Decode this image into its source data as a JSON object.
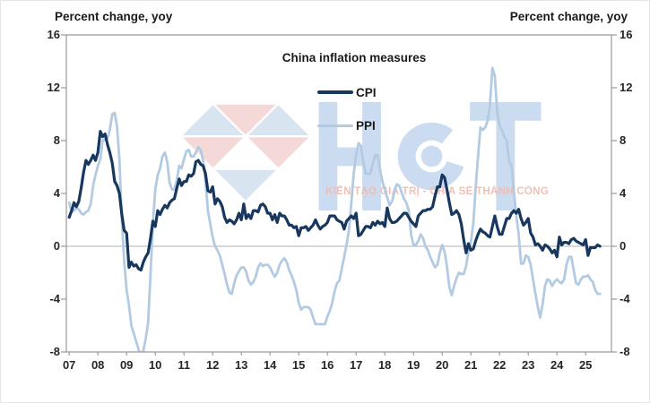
{
  "chart": {
    "left_axis_title": "Percent change, yoy",
    "right_axis_title": "Percent change, yoy",
    "legend": {
      "title": "China inflation measures",
      "items": [
        {
          "label": "CPI",
          "color": "#17375e",
          "thickness": 4
        },
        {
          "label": "PPI",
          "color": "#b3cbe2",
          "thickness": 3
        }
      ]
    },
    "frame_color": "#9a9a9a",
    "zero_line_color": "#b0b0b0",
    "tick_label_color": "#262626"
  },
  "watermark": {
    "text": "HCT",
    "tagline": "KIẾN TẠO GIÁ TRỊ - CHIA SẺ THÀNH CÔNG",
    "colors": {
      "logo_blue": "#d9e4f1",
      "logo_pink": "#f5d9d9",
      "text_blue": "#ccdcf0",
      "tagline_pink": "#efbdb2"
    }
  },
  "chart_data": {
    "type": "line",
    "title": "China inflation measures",
    "xlabel": "",
    "ylabel": "Percent change, yoy",
    "xlim": [
      2006.9,
      2025.9
    ],
    "ylim": [
      -8,
      16
    ],
    "y_ticks": [
      16,
      12,
      8,
      4,
      0,
      -4,
      -8
    ],
    "y_tick_labels": [
      "16",
      "12",
      "8",
      "4",
      "0",
      "-4",
      "-8"
    ],
    "x_tick_years": [
      2007,
      2008,
      2009,
      2010,
      2011,
      2012,
      2013,
      2014,
      2015,
      2016,
      2017,
      2018,
      2019,
      2020,
      2021,
      2022,
      2023,
      2024,
      2025
    ],
    "x_tick_labels": [
      "07",
      "08",
      "09",
      "10",
      "11",
      "12",
      "13",
      "14",
      "15",
      "16",
      "17",
      "18",
      "19",
      "20",
      "21",
      "22",
      "23",
      "24",
      "25"
    ],
    "grid": "zero-line-only",
    "legend_position": "top-center",
    "x_start": 2007.0,
    "x_step_years": 0.0833333,
    "x_frequency": "monthly",
    "series": [
      {
        "name": "CPI",
        "color": "#17375e",
        "width": 3.2,
        "values": [
          2.2,
          2.7,
          3.3,
          3.0,
          3.4,
          4.4,
          5.6,
          6.5,
          6.2,
          6.5,
          6.9,
          6.5,
          7.1,
          8.7,
          8.3,
          8.5,
          7.7,
          7.1,
          6.3,
          4.9,
          4.6,
          4.0,
          2.4,
          1.2,
          1.0,
          -1.6,
          -1.2,
          -1.5,
          -1.4,
          -1.7,
          -1.8,
          -1.2,
          -0.8,
          -0.5,
          0.6,
          1.9,
          1.5,
          2.7,
          2.4,
          2.8,
          3.1,
          2.9,
          3.3,
          3.5,
          3.6,
          4.4,
          5.1,
          4.6,
          4.9,
          4.9,
          5.4,
          5.3,
          5.5,
          6.4,
          6.5,
          6.2,
          6.1,
          5.5,
          4.2,
          4.1,
          4.5,
          3.2,
          3.6,
          3.4,
          3.0,
          2.2,
          1.8,
          2.0,
          1.9,
          1.7,
          2.0,
          2.5,
          2.0,
          3.2,
          2.1,
          2.4,
          2.1,
          2.7,
          2.7,
          2.6,
          3.1,
          3.2,
          3.0,
          2.5,
          2.5,
          2.0,
          2.4,
          1.8,
          2.5,
          2.3,
          2.3,
          2.0,
          1.6,
          1.6,
          1.4,
          1.5,
          0.8,
          1.4,
          1.4,
          1.5,
          1.2,
          1.4,
          1.6,
          2.0,
          1.6,
          1.3,
          1.5,
          1.6,
          1.8,
          2.3,
          2.3,
          2.3,
          2.0,
          1.9,
          1.8,
          1.3,
          1.9,
          2.1,
          2.3,
          2.1,
          2.5,
          0.8,
          0.9,
          1.2,
          1.5,
          1.5,
          1.4,
          1.8,
          1.6,
          1.9,
          1.7,
          1.8,
          1.5,
          2.9,
          2.1,
          1.8,
          1.8,
          1.9,
          2.1,
          2.3,
          2.5,
          2.5,
          2.2,
          1.9,
          1.7,
          1.5,
          2.3,
          2.5,
          2.7,
          2.7,
          2.8,
          2.8,
          3.0,
          3.8,
          4.5,
          4.5,
          5.4,
          5.2,
          4.3,
          3.3,
          2.4,
          2.5,
          2.7,
          2.4,
          1.7,
          0.5,
          -0.5,
          0.2,
          -0.3,
          -0.2,
          0.4,
          0.9,
          1.3,
          1.1,
          1.0,
          0.8,
          0.7,
          1.5,
          2.3,
          1.5,
          0.9,
          0.9,
          1.5,
          2.1,
          2.1,
          2.5,
          2.7,
          2.5,
          2.8,
          2.1,
          1.6,
          1.8,
          2.1,
          1.0,
          0.7,
          0.1,
          0.2,
          0.0,
          -0.3,
          0.1,
          0.0,
          -0.2,
          -0.5,
          -0.3,
          -0.8,
          0.7,
          0.1,
          0.3,
          0.3,
          0.2,
          0.5,
          0.6,
          0.4,
          0.3,
          0.2,
          0.1,
          0.5,
          -0.7,
          -0.1,
          -0.1,
          -0.1,
          0.1,
          0.0
        ]
      },
      {
        "name": "PPI",
        "color": "#b3cbe2",
        "width": 2.8,
        "values": [
          3.3,
          2.6,
          2.7,
          2.9,
          2.8,
          2.5,
          2.4,
          2.6,
          2.7,
          3.2,
          4.6,
          5.4,
          6.1,
          6.6,
          8.0,
          8.1,
          8.2,
          8.8,
          10.0,
          10.1,
          9.1,
          6.6,
          2.0,
          -1.1,
          -3.3,
          -4.5,
          -6.0,
          -6.6,
          -7.2,
          -7.8,
          -8.2,
          -7.9,
          -7.0,
          -5.8,
          -2.1,
          1.7,
          4.3,
          5.4,
          5.9,
          6.8,
          7.1,
          6.4,
          4.8,
          4.3,
          4.3,
          5.0,
          6.1,
          5.9,
          6.6,
          7.2,
          7.3,
          6.8,
          6.8,
          7.1,
          7.5,
          7.3,
          6.5,
          5.0,
          2.7,
          1.7,
          0.7,
          0.0,
          -0.3,
          -0.7,
          -1.4,
          -2.1,
          -2.9,
          -3.5,
          -3.6,
          -2.8,
          -2.2,
          -1.9,
          -1.6,
          -1.6,
          -1.9,
          -2.6,
          -2.9,
          -2.7,
          -2.3,
          -1.6,
          -1.3,
          -1.5,
          -1.4,
          -1.4,
          -1.6,
          -2.0,
          -2.3,
          -2.0,
          -1.4,
          -1.1,
          -0.9,
          -1.2,
          -1.8,
          -2.2,
          -2.7,
          -3.3,
          -4.3,
          -4.8,
          -4.6,
          -4.6,
          -4.6,
          -4.8,
          -5.4,
          -5.9,
          -5.9,
          -5.9,
          -5.9,
          -5.9,
          -5.3,
          -4.9,
          -4.3,
          -3.4,
          -2.8,
          -2.6,
          -1.7,
          -0.8,
          0.1,
          1.2,
          3.3,
          5.5,
          6.9,
          7.8,
          7.6,
          6.4,
          5.5,
          5.5,
          5.5,
          6.3,
          6.9,
          6.9,
          5.8,
          4.9,
          4.3,
          3.7,
          3.1,
          3.4,
          4.1,
          4.7,
          4.6,
          4.1,
          3.6,
          3.3,
          2.7,
          0.9,
          0.1,
          0.1,
          0.4,
          0.9,
          0.6,
          0.0,
          -0.3,
          -0.8,
          -1.2,
          -1.6,
          -1.4,
          -0.5,
          0.1,
          -0.4,
          -1.5,
          -3.1,
          -3.7,
          -3.0,
          -2.4,
          -2.0,
          -2.1,
          -2.1,
          -1.5,
          -0.4,
          0.3,
          1.7,
          4.4,
          6.8,
          9.0,
          8.8,
          9.0,
          9.5,
          10.7,
          13.5,
          12.9,
          10.3,
          9.1,
          8.8,
          8.3,
          8.0,
          6.4,
          6.1,
          4.2,
          2.3,
          0.9,
          -1.3,
          -1.3,
          -0.7,
          -0.8,
          -1.4,
          -2.5,
          -3.6,
          -4.6,
          -5.4,
          -4.4,
          -3.0,
          -2.5,
          -2.6,
          -3.0,
          -2.7,
          -2.5,
          -2.7,
          -2.8,
          -2.5,
          -1.4,
          -0.8,
          -0.8,
          -1.8,
          -2.8,
          -2.9,
          -2.5,
          -2.3,
          -2.3,
          -2.2,
          -2.5,
          -2.7,
          -3.3,
          -3.6,
          -3.6
        ]
      }
    ]
  }
}
